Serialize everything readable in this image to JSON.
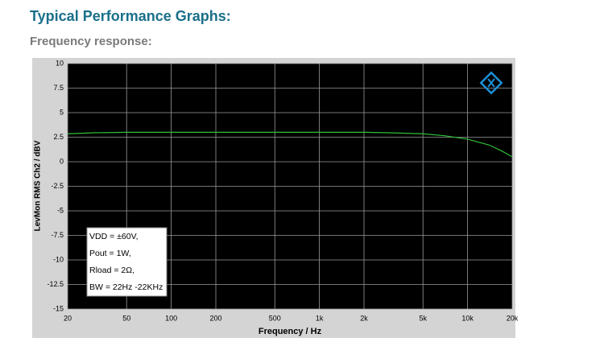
{
  "header": {
    "title": "Typical Performance Graphs:",
    "subtitle": "Frequency response:"
  },
  "chart_data": {
    "type": "line",
    "xlabel": "Frequency / Hz",
    "ylabel": "LevMon RMS Ch2 / dBV",
    "log_x": true,
    "grid": true,
    "xlim": [
      20,
      20000
    ],
    "ylim": [
      -15,
      10
    ],
    "xticks": [
      20,
      50,
      100,
      200,
      500,
      {
        "value": 1000,
        "label": "1k"
      },
      {
        "value": 2000,
        "label": "2k"
      },
      {
        "value": 5000,
        "label": "5k"
      },
      {
        "value": 10000,
        "label": "10k"
      },
      {
        "value": 20000,
        "label": "20k"
      }
    ],
    "yticks": [
      10,
      7.5,
      5,
      2.5,
      0,
      -2.5,
      -5,
      -7.5,
      -10,
      -12.5,
      -15
    ],
    "x": [
      20,
      30,
      50,
      100,
      200,
      500,
      1000,
      2000,
      3000,
      5000,
      7000,
      10000,
      14000,
      17000,
      20000
    ],
    "series": [
      {
        "color": "#2fbf3a",
        "values": [
          2.85,
          2.95,
          3.0,
          3.0,
          3.0,
          3.0,
          3.0,
          3.0,
          2.95,
          2.85,
          2.65,
          2.3,
          1.7,
          1.1,
          0.5
        ]
      }
    ],
    "annotations": [
      "VDD = ±60V,",
      "Pout = 1W,",
      "Rload = 2Ω,",
      "BW = 22Hz -22KHz"
    ]
  }
}
